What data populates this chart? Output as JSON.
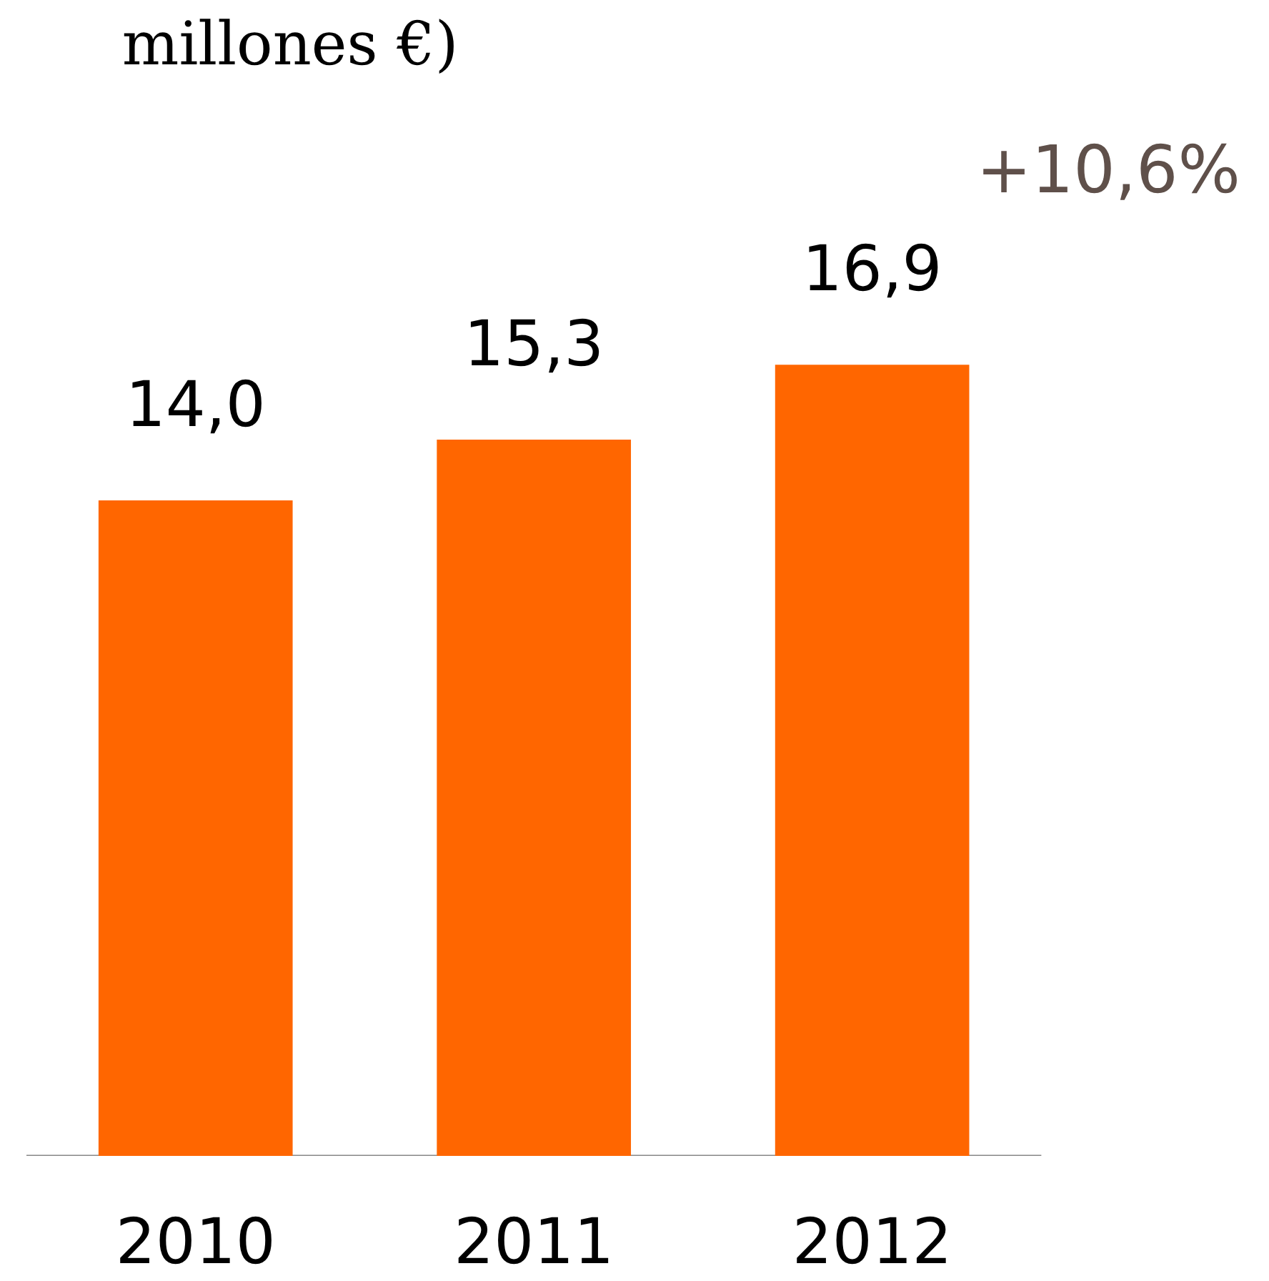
{
  "chart_data": {
    "type": "bar",
    "title": "millones €)",
    "categories": [
      "2010",
      "2011",
      "2012"
    ],
    "values": [
      14.0,
      15.3,
      16.9
    ],
    "value_labels": [
      "14,0",
      "15,3",
      "16,9"
    ],
    "color": "#ff6600",
    "grid": false,
    "annotations": [
      "+10,6%"
    ]
  }
}
